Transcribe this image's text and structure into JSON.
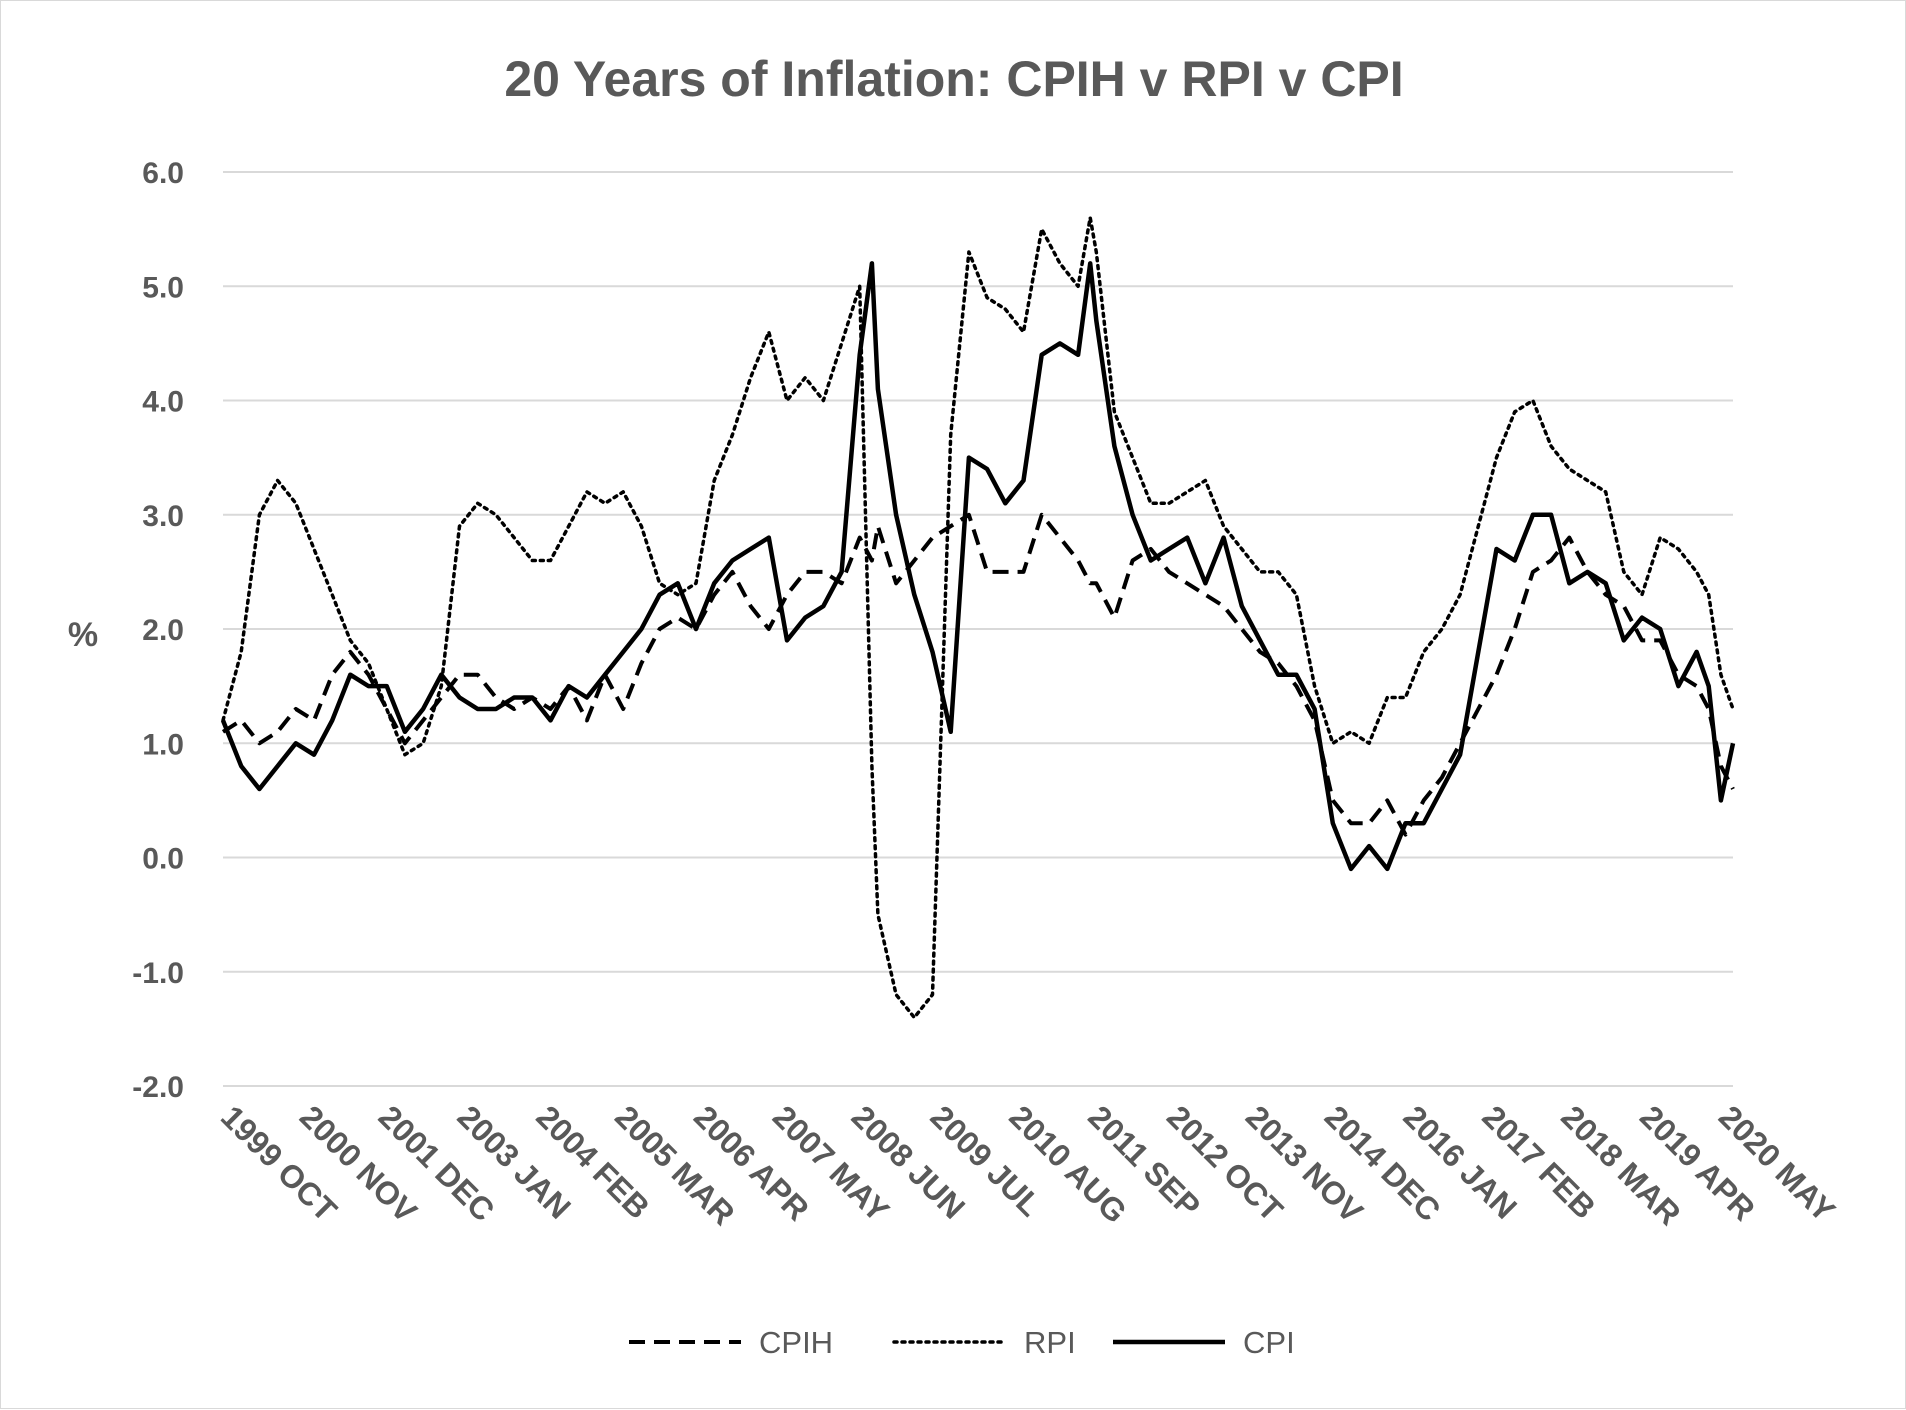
{
  "chart_data": {
    "type": "line",
    "title": "20 Years of Inflation: CPIH v RPI v CPI",
    "ylabel": "%",
    "xlabel": "",
    "ylim": [
      -2.0,
      6.0
    ],
    "yticks": [
      "6.0",
      "5.0",
      "4.0",
      "3.0",
      "2.0",
      "1.0",
      "0.0",
      "-1.0",
      "-2.0"
    ],
    "xticks": [
      "1999 OCT",
      "2000 NOV",
      "2001 DEC",
      "2003 JAN",
      "2004 FEB",
      "2005 MAR",
      "2006 APR",
      "2007 MAY",
      "2008 JUN",
      "2009 JUL",
      "2010 AUG",
      "2011 SEP",
      "2012 OCT",
      "2013 NOV",
      "2014 DEC",
      "2016 JAN",
      "2017 FEB",
      "2018 MAR",
      "2019 APR",
      "2020 MAY"
    ],
    "grid": true,
    "legend": "bottom",
    "x": [
      "1999-10",
      "2000-01",
      "2000-04",
      "2000-07",
      "2000-10",
      "2001-01",
      "2001-04",
      "2001-07",
      "2001-10",
      "2002-01",
      "2002-04",
      "2002-07",
      "2002-10",
      "2003-01",
      "2003-04",
      "2003-07",
      "2003-10",
      "2004-01",
      "2004-04",
      "2004-07",
      "2004-10",
      "2005-01",
      "2005-04",
      "2005-07",
      "2005-10",
      "2006-01",
      "2006-04",
      "2006-07",
      "2006-10",
      "2007-01",
      "2007-04",
      "2007-07",
      "2007-10",
      "2008-01",
      "2008-04",
      "2008-07",
      "2008-09",
      "2008-10",
      "2009-01",
      "2009-04",
      "2009-07",
      "2009-10",
      "2010-01",
      "2010-04",
      "2010-07",
      "2010-10",
      "2011-01",
      "2011-04",
      "2011-07",
      "2011-09",
      "2011-10",
      "2012-01",
      "2012-04",
      "2012-07",
      "2012-10",
      "2013-01",
      "2013-04",
      "2013-07",
      "2013-10",
      "2014-01",
      "2014-04",
      "2014-07",
      "2014-10",
      "2015-01",
      "2015-04",
      "2015-07",
      "2015-10",
      "2016-01",
      "2016-04",
      "2016-07",
      "2016-10",
      "2017-01",
      "2017-04",
      "2017-07",
      "2017-10",
      "2018-01",
      "2018-04",
      "2018-07",
      "2018-10",
      "2019-01",
      "2019-04",
      "2019-07",
      "2019-10",
      "2020-01",
      "2020-03",
      "2020-05",
      "2020-07"
    ],
    "series": [
      {
        "name": "CPIH",
        "dash": "dashed",
        "values": [
          1.1,
          1.2,
          1.0,
          1.1,
          1.3,
          1.2,
          1.6,
          1.8,
          1.6,
          1.3,
          1.0,
          1.2,
          1.4,
          1.6,
          1.6,
          1.4,
          1.3,
          1.4,
          1.3,
          1.5,
          1.2,
          1.6,
          1.3,
          1.7,
          2.0,
          2.1,
          2.0,
          2.3,
          2.5,
          2.2,
          2.0,
          2.3,
          2.5,
          2.5,
          2.4,
          2.8,
          2.6,
          2.9,
          2.4,
          2.6,
          2.8,
          2.9,
          3.0,
          2.5,
          2.5,
          2.5,
          3.0,
          2.8,
          2.6,
          2.4,
          2.4,
          2.1,
          2.6,
          2.7,
          2.5,
          2.4,
          2.3,
          2.2,
          2.0,
          1.8,
          1.7,
          1.5,
          1.2,
          0.5,
          0.3,
          0.3,
          0.5,
          0.2,
          0.5,
          0.7,
          1.0,
          1.3,
          1.6,
          2.0,
          2.5,
          2.6,
          2.8,
          2.5,
          2.3,
          2.2,
          1.9,
          1.9,
          1.6,
          1.5,
          1.3,
          0.8,
          0.6
        ]
      },
      {
        "name": "RPI",
        "dash": "dotted",
        "values": [
          1.2,
          1.8,
          3.0,
          3.3,
          3.1,
          2.7,
          2.3,
          1.9,
          1.7,
          1.3,
          0.9,
          1.0,
          1.5,
          2.9,
          3.1,
          3.0,
          2.8,
          2.6,
          2.6,
          2.9,
          3.2,
          3.1,
          3.2,
          2.9,
          2.4,
          2.3,
          2.4,
          3.3,
          3.7,
          4.2,
          4.6,
          4.0,
          4.2,
          4.0,
          4.5,
          5.0,
          0.8,
          -0.5,
          -1.2,
          -1.4,
          -1.2,
          3.7,
          5.3,
          4.9,
          4.8,
          4.6,
          5.5,
          5.2,
          5.0,
          5.6,
          5.3,
          3.9,
          3.5,
          3.1,
          3.1,
          3.2,
          3.3,
          2.9,
          2.7,
          2.5,
          2.5,
          2.3,
          1.5,
          1.0,
          1.1,
          1.0,
          1.4,
          1.4,
          1.8,
          2.0,
          2.3,
          2.9,
          3.5,
          3.9,
          4.0,
          3.6,
          3.4,
          3.3,
          3.2,
          2.5,
          2.3,
          2.8,
          2.7,
          2.5,
          2.3,
          1.6,
          1.3
        ]
      },
      {
        "name": "CPI",
        "dash": "solid",
        "values": [
          1.2,
          0.8,
          0.6,
          0.8,
          1.0,
          0.9,
          1.2,
          1.6,
          1.5,
          1.5,
          1.1,
          1.3,
          1.6,
          1.4,
          1.3,
          1.3,
          1.4,
          1.4,
          1.2,
          1.5,
          1.4,
          1.6,
          1.8,
          2.0,
          2.3,
          2.4,
          2.0,
          2.4,
          2.6,
          2.7,
          2.8,
          1.9,
          2.1,
          2.2,
          2.5,
          4.4,
          5.2,
          4.1,
          3.0,
          2.3,
          1.8,
          1.1,
          3.5,
          3.4,
          3.1,
          3.3,
          4.4,
          4.5,
          4.4,
          5.2,
          4.7,
          3.6,
          3.0,
          2.6,
          2.7,
          2.8,
          2.4,
          2.8,
          2.2,
          1.9,
          1.6,
          1.6,
          1.3,
          0.3,
          -0.1,
          0.1,
          -0.1,
          0.3,
          0.3,
          0.6,
          0.9,
          1.8,
          2.7,
          2.6,
          3.0,
          3.0,
          2.4,
          2.5,
          2.4,
          1.9,
          2.1,
          2.0,
          1.5,
          1.8,
          1.5,
          0.5,
          1.0
        ]
      }
    ]
  }
}
